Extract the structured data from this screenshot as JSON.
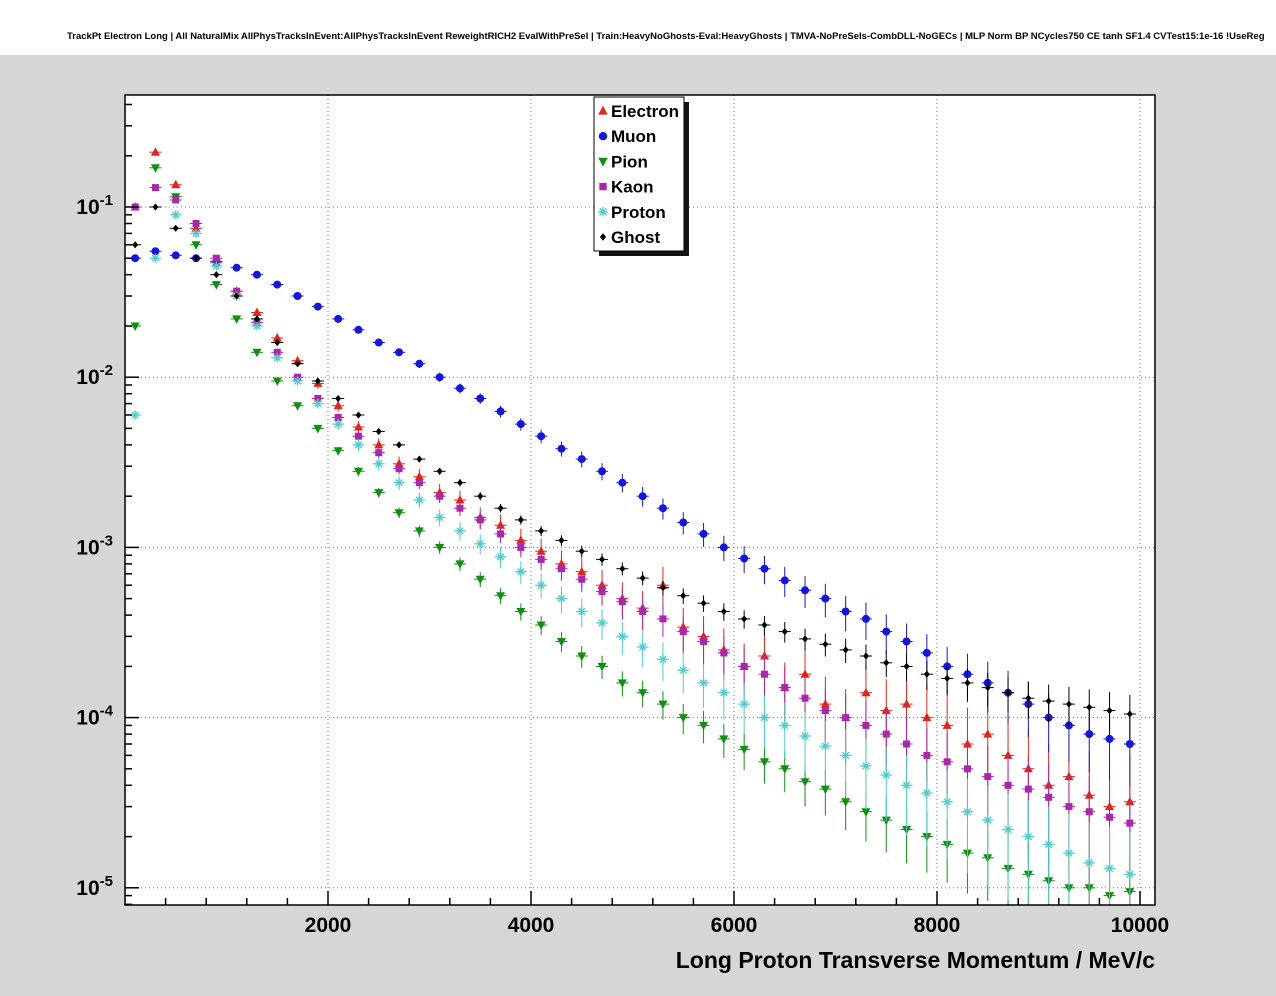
{
  "chart_data": {
    "type": "scatter",
    "title": "TrackPt Electron Long | All NaturalMix AllPhysTracksInEvent:AllPhysTracksInEvent ReweightRICH2 EvalWithPreSel | Train:HeavyNoGhosts-Eval:HeavyGhosts | TMVA-NoPreSels-CombDLL-NoGECs | MLP Norm BP NCycles750 CE tanh SF1.4 CVTest15:1e-16 !UseReg",
    "xlabel": "Long Proton Transverse Momentum / MeV/c",
    "ylabel": "",
    "x_range": [
      0,
      10150
    ],
    "y_scale": "log",
    "y_range": [
      8e-06,
      0.45
    ],
    "x_ticks": [
      2000,
      4000,
      6000,
      8000,
      10000
    ],
    "y_tick_decades": [
      -1,
      -2,
      -3,
      -4,
      -5
    ],
    "grid": "dotted",
    "legend": {
      "position": "top-center",
      "entries": [
        "Electron",
        "Muon",
        "Pion",
        "Kaon",
        "Proton",
        "Ghost"
      ]
    },
    "x": [
      100,
      300,
      500,
      700,
      900,
      1100,
      1300,
      1500,
      1700,
      1900,
      2100,
      2300,
      2500,
      2700,
      2900,
      3100,
      3300,
      3500,
      3700,
      3900,
      4100,
      4300,
      4500,
      4700,
      4900,
      5100,
      5300,
      5500,
      5700,
      5900,
      6100,
      6300,
      6500,
      6700,
      6900,
      7100,
      7300,
      7500,
      7700,
      7900,
      8100,
      8300,
      8500,
      8700,
      8900,
      9100,
      9300,
      9500,
      9700,
      9900
    ],
    "series": [
      {
        "name": "Electron",
        "marker": "triangle-up",
        "color": "#e02519",
        "err_rel": [
          0.04,
          0.9
        ],
        "values": [
          0.1,
          0.21,
          0.135,
          0.075,
          0.047,
          0.032,
          0.024,
          0.017,
          0.0125,
          0.0092,
          0.0068,
          0.0051,
          0.004,
          0.0031,
          0.0026,
          0.0021,
          0.0019,
          0.0015,
          0.00135,
          0.0011,
          0.00095,
          0.0008,
          0.00072,
          0.0006,
          0.0005,
          0.00044,
          0.0006,
          0.00034,
          0.0003,
          0.00025,
          0.0002,
          0.00023,
          0.00015,
          0.00018,
          0.00012,
          0.0001,
          0.00014,
          0.00011,
          0.00012,
          0.0001,
          9e-05,
          7e-05,
          8e-05,
          6e-05,
          5e-05,
          4e-05,
          4.5e-05,
          3.5e-05,
          3e-05,
          3.2e-05
        ]
      },
      {
        "name": "Muon",
        "marker": "circle",
        "color": "#1515dd",
        "err_rel": [
          0.02,
          0.45
        ],
        "values": [
          0.05,
          0.055,
          0.052,
          0.05,
          0.048,
          0.044,
          0.04,
          0.035,
          0.03,
          0.026,
          0.022,
          0.019,
          0.016,
          0.014,
          0.012,
          0.01,
          0.0086,
          0.0075,
          0.0063,
          0.0053,
          0.0045,
          0.0038,
          0.0033,
          0.0028,
          0.0024,
          0.002,
          0.0017,
          0.0014,
          0.0012,
          0.001,
          0.00086,
          0.00075,
          0.00064,
          0.00056,
          0.0005,
          0.00042,
          0.00038,
          0.00032,
          0.00028,
          0.00024,
          0.0002,
          0.00018,
          0.00016,
          0.00014,
          0.00012,
          0.0001,
          9e-05,
          8e-05,
          7.5e-05,
          7e-05
        ]
      },
      {
        "name": "Pion",
        "marker": "triangle-down",
        "color": "#109010",
        "err_rel": [
          0.03,
          0.6
        ],
        "values": [
          0.02,
          0.17,
          0.115,
          0.06,
          0.035,
          0.022,
          0.014,
          0.0095,
          0.0068,
          0.005,
          0.0037,
          0.0028,
          0.0021,
          0.0016,
          0.00125,
          0.001,
          0.0008,
          0.00065,
          0.00052,
          0.00042,
          0.00035,
          0.00028,
          0.00023,
          0.0002,
          0.00016,
          0.00014,
          0.00012,
          0.0001,
          9e-05,
          7.5e-05,
          6.5e-05,
          5.5e-05,
          5e-05,
          4.2e-05,
          3.8e-05,
          3.2e-05,
          2.8e-05,
          2.5e-05,
          2.2e-05,
          2e-05,
          1.8e-05,
          1.6e-05,
          1.5e-05,
          1.3e-05,
          1.2e-05,
          1.1e-05,
          1e-05,
          1e-05,
          9e-06,
          9.5e-06
        ]
      },
      {
        "name": "Kaon",
        "marker": "square",
        "color": "#aa26aa",
        "err_rel": [
          0.025,
          0.7
        ],
        "values": [
          0.1,
          0.13,
          0.11,
          0.08,
          0.05,
          0.032,
          0.021,
          0.014,
          0.01,
          0.0075,
          0.0058,
          0.0045,
          0.0036,
          0.0029,
          0.0024,
          0.002,
          0.0017,
          0.00145,
          0.0012,
          0.001,
          0.00085,
          0.00075,
          0.00065,
          0.00055,
          0.00048,
          0.00042,
          0.00038,
          0.00032,
          0.00028,
          0.00024,
          0.0002,
          0.00018,
          0.00015,
          0.00013,
          0.00011,
          0.0001,
          9e-05,
          8e-05,
          7e-05,
          6e-05,
          5.5e-05,
          5e-05,
          4.5e-05,
          4e-05,
          3.8e-05,
          3.4e-05,
          3e-05,
          2.8e-05,
          2.6e-05,
          2.4e-05
        ]
      },
      {
        "name": "Proton",
        "marker": "star",
        "color": "#4ecccc",
        "err_rel": [
          0.04,
          0.8
        ],
        "values": [
          0.006,
          0.05,
          0.09,
          0.07,
          0.045,
          0.03,
          0.02,
          0.013,
          0.0095,
          0.007,
          0.0053,
          0.004,
          0.0031,
          0.0024,
          0.0019,
          0.0015,
          0.00125,
          0.00105,
          0.00088,
          0.00072,
          0.0006,
          0.0005,
          0.00042,
          0.00036,
          0.0003,
          0.00026,
          0.00022,
          0.00019,
          0.00016,
          0.00014,
          0.00012,
          0.0001,
          9e-05,
          7.8e-05,
          6.8e-05,
          6e-05,
          5.2e-05,
          4.6e-05,
          4e-05,
          3.6e-05,
          3.2e-05,
          2.8e-05,
          2.5e-05,
          2.2e-05,
          2e-05,
          1.8e-05,
          1.6e-05,
          1.4e-05,
          1.3e-05,
          1.2e-05
        ]
      },
      {
        "name": "Ghost",
        "marker": "diamond",
        "color": "#000000",
        "err_rel": [
          0.02,
          0.3
        ],
        "values": [
          0.06,
          0.1,
          0.075,
          0.05,
          0.04,
          0.03,
          0.022,
          0.016,
          0.012,
          0.0095,
          0.0075,
          0.006,
          0.0048,
          0.004,
          0.0033,
          0.0028,
          0.0024,
          0.002,
          0.0017,
          0.00145,
          0.00125,
          0.0011,
          0.00095,
          0.00085,
          0.00075,
          0.00066,
          0.00058,
          0.00052,
          0.00047,
          0.00042,
          0.00038,
          0.00035,
          0.00032,
          0.00029,
          0.00027,
          0.00025,
          0.00023,
          0.00021,
          0.0002,
          0.00018,
          0.00017,
          0.00016,
          0.00015,
          0.00014,
          0.00013,
          0.000125,
          0.00012,
          0.000115,
          0.00011,
          0.000105
        ]
      }
    ]
  },
  "colors": {
    "canvas_top": "#ffffff",
    "pad": "#d6d6d6",
    "frame_bg": "#ffffff",
    "frame_border": "#000000",
    "grid": "#777777",
    "text": "#000000",
    "legend_bg": "#ffffff",
    "legend_shadow": "#141414"
  }
}
